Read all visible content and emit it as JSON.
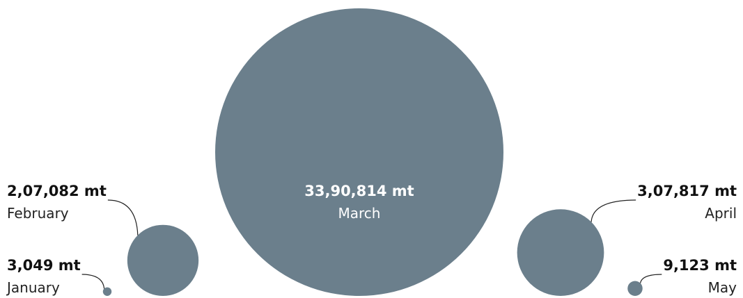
{
  "chart_data": {
    "type": "bubble",
    "unit": "mt",
    "bubble_color": "#6b7f8c",
    "series": [
      {
        "month": "January",
        "value": 3049,
        "value_label": "3,049 mt"
      },
      {
        "month": "February",
        "value": 207082,
        "value_label": "2,07,082 mt"
      },
      {
        "month": "March",
        "value": 3390814,
        "value_label": "33,90,814 mt"
      },
      {
        "month": "April",
        "value": 307817,
        "value_label": "3,07,817 mt"
      },
      {
        "month": "May",
        "value": 9123,
        "value_label": "9,123 mt"
      }
    ]
  }
}
